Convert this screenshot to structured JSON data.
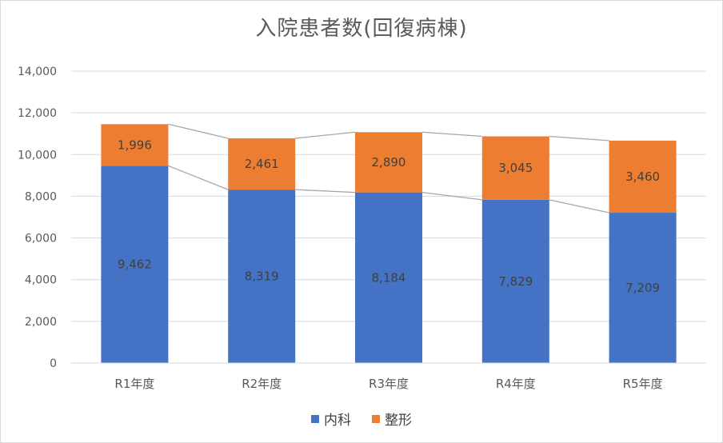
{
  "chart_data": {
    "type": "bar",
    "stacked": true,
    "title": "入院患者数(回復病棟)",
    "categories": [
      "R1年度",
      "R2年度",
      "R3年度",
      "R4年度",
      "R5年度"
    ],
    "series": [
      {
        "name": "内科",
        "values": [
          9462,
          8319,
          8184,
          7829,
          7209
        ],
        "color": "#4472c4",
        "labels": [
          "9,462",
          "8,319",
          "8,184",
          "7,829",
          "7,209"
        ]
      },
      {
        "name": "整形",
        "values": [
          1996,
          2461,
          2890,
          3045,
          3460
        ],
        "color": "#ed7d31",
        "labels": [
          "1,996",
          "2,461",
          "2,890",
          "3,045",
          "3,460"
        ]
      }
    ],
    "ylim": [
      0,
      14000
    ],
    "yticks": [
      0,
      2000,
      4000,
      6000,
      8000,
      10000,
      12000,
      14000
    ],
    "ytick_labels": [
      "0",
      "2,000",
      "4,000",
      "6,000",
      "8,000",
      "10,000",
      "12,000",
      "14,000"
    ],
    "series_lines": true,
    "grid": true,
    "legend_position": "bottom",
    "gridline_color": "#d9d9d9",
    "series_line_color": "#a6a6a6"
  }
}
